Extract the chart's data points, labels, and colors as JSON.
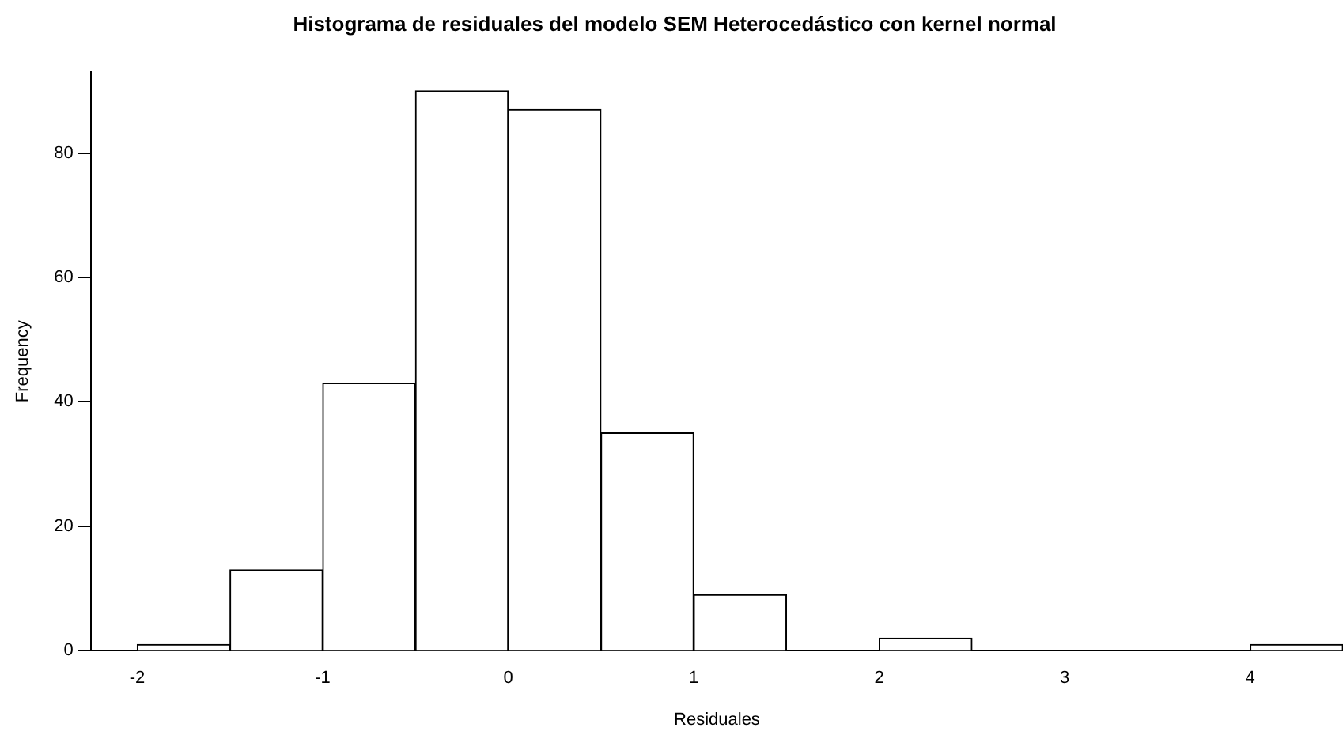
{
  "chart_data": {
    "type": "histogram",
    "title": "Histograma de residuales del modelo SEM Heterocedástico con kernel normal",
    "xlabel": "Residuales",
    "ylabel": "Frequency",
    "bins": [
      -2,
      -1.5,
      -1,
      -0.5,
      0,
      0.5,
      1,
      1.5,
      2,
      2.5,
      3,
      3.5,
      4,
      4.5
    ],
    "values": [
      1,
      13,
      43,
      90,
      87,
      35,
      9,
      0,
      2,
      0,
      0,
      0,
      1
    ],
    "color": "#ffffff",
    "xlim": [
      -2.25,
      4.5
    ],
    "xticks": [
      -2,
      -1,
      0,
      1,
      2,
      3,
      4
    ],
    "ylim": [
      0,
      93
    ],
    "yticks": [
      0,
      20,
      40,
      60,
      80
    ]
  }
}
